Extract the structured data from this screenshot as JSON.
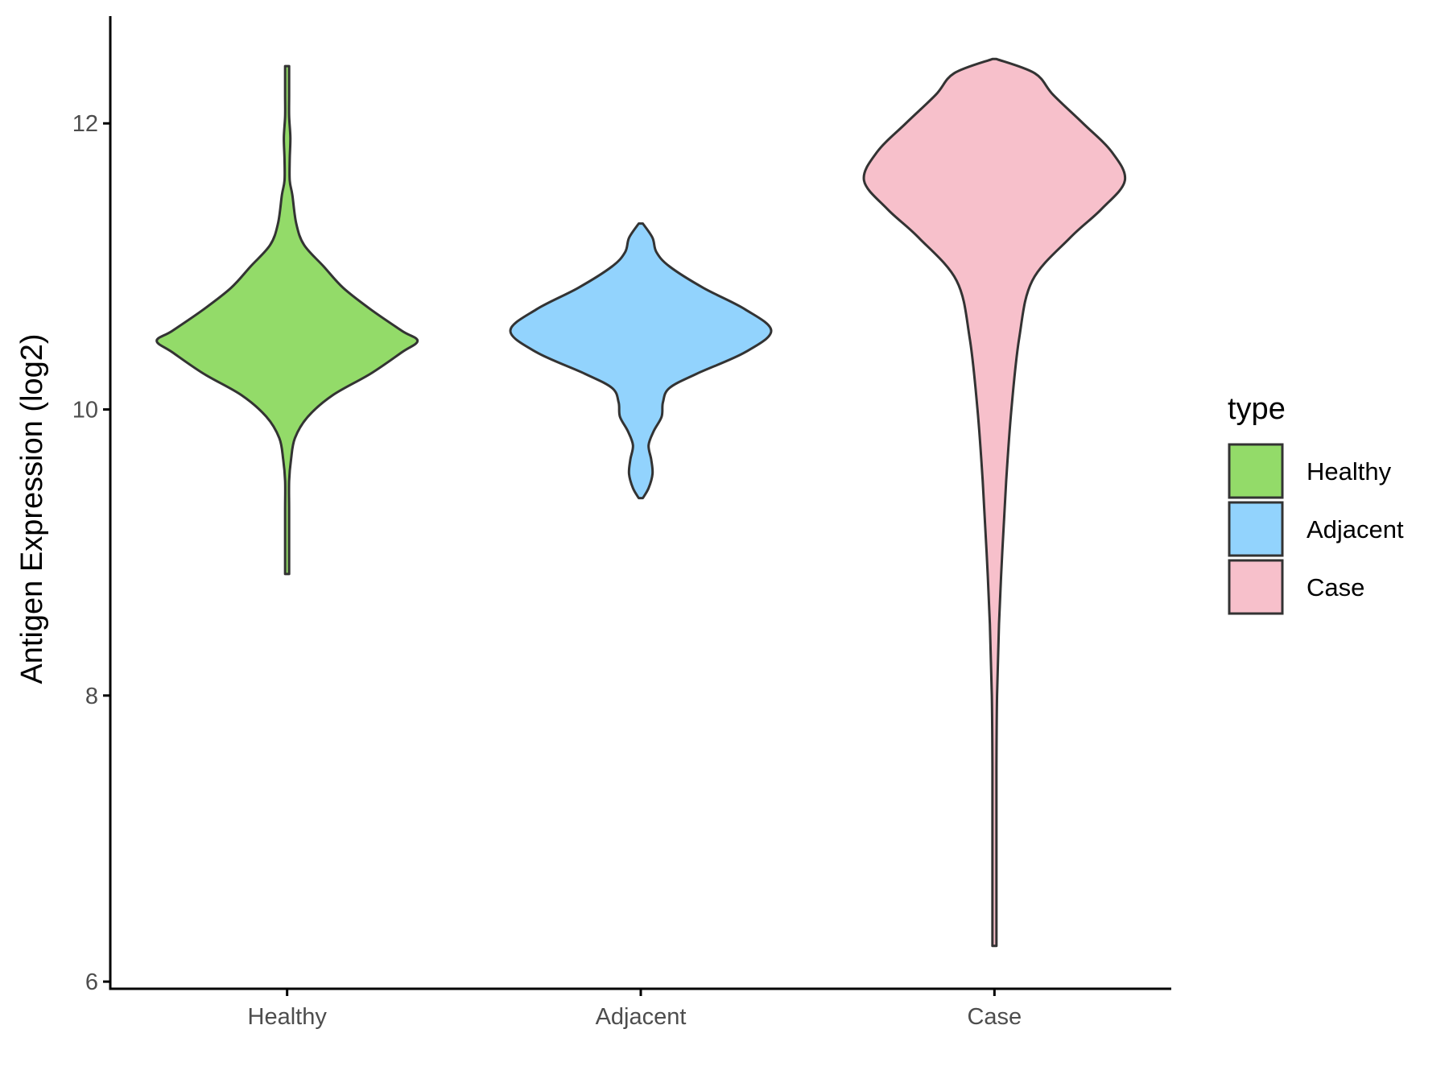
{
  "chart_data": {
    "type": "violin",
    "title": "",
    "xlabel": "",
    "ylabel": "Antigen Expression (log2)",
    "ylim": [
      5.95,
      12.75
    ],
    "yticks": [
      6,
      8,
      10,
      12
    ],
    "categories": [
      "Healthy",
      "Adjacent",
      "Case"
    ],
    "grid": false,
    "legend": {
      "title": "type",
      "position": "right",
      "entries": [
        "Healthy",
        "Adjacent",
        "Case"
      ]
    },
    "series": [
      {
        "category": "Healthy",
        "color": "#93db69",
        "min": 8.85,
        "max": 12.4,
        "density": [
          [
            8.85,
            0.0
          ],
          [
            9.0,
            0.01
          ],
          [
            9.3,
            0.01
          ],
          [
            9.5,
            0.01
          ],
          [
            9.65,
            0.03
          ],
          [
            9.8,
            0.06
          ],
          [
            9.95,
            0.16
          ],
          [
            10.1,
            0.35
          ],
          [
            10.25,
            0.64
          ],
          [
            10.4,
            0.88
          ],
          [
            10.48,
            1.0
          ],
          [
            10.55,
            0.88
          ],
          [
            10.7,
            0.64
          ],
          [
            10.85,
            0.43
          ],
          [
            11.0,
            0.28
          ],
          [
            11.15,
            0.13
          ],
          [
            11.3,
            0.07
          ],
          [
            11.5,
            0.04
          ],
          [
            11.6,
            0.02
          ],
          [
            11.75,
            0.02
          ],
          [
            11.9,
            0.025
          ],
          [
            12.05,
            0.015
          ],
          [
            12.2,
            0.01
          ],
          [
            12.4,
            0.0
          ]
        ]
      },
      {
        "category": "Adjacent",
        "color": "#92d3fd",
        "min": 9.38,
        "max": 11.3,
        "density": [
          [
            9.38,
            0.0
          ],
          [
            9.45,
            0.06
          ],
          [
            9.55,
            0.09
          ],
          [
            9.65,
            0.08
          ],
          [
            9.75,
            0.06
          ],
          [
            9.85,
            0.1
          ],
          [
            9.95,
            0.16
          ],
          [
            10.05,
            0.17
          ],
          [
            10.15,
            0.22
          ],
          [
            10.25,
            0.43
          ],
          [
            10.4,
            0.8
          ],
          [
            10.55,
            1.0
          ],
          [
            10.7,
            0.8
          ],
          [
            10.85,
            0.48
          ],
          [
            11.0,
            0.22
          ],
          [
            11.1,
            0.12
          ],
          [
            11.2,
            0.09
          ],
          [
            11.3,
            0.0
          ]
        ]
      },
      {
        "category": "Case",
        "color": "#f7c0cb",
        "min": 6.25,
        "max": 12.45,
        "density": [
          [
            6.25,
            0.0
          ],
          [
            6.5,
            0.01
          ],
          [
            7.0,
            0.01
          ],
          [
            7.5,
            0.015
          ],
          [
            8.0,
            0.02
          ],
          [
            8.5,
            0.035
          ],
          [
            9.0,
            0.06
          ],
          [
            9.5,
            0.09
          ],
          [
            10.0,
            0.13
          ],
          [
            10.5,
            0.19
          ],
          [
            10.9,
            0.29
          ],
          [
            11.2,
            0.58
          ],
          [
            11.4,
            0.82
          ],
          [
            11.6,
            1.0
          ],
          [
            11.8,
            0.9
          ],
          [
            12.0,
            0.68
          ],
          [
            12.2,
            0.45
          ],
          [
            12.35,
            0.31
          ],
          [
            12.45,
            0.0
          ]
        ]
      }
    ]
  }
}
